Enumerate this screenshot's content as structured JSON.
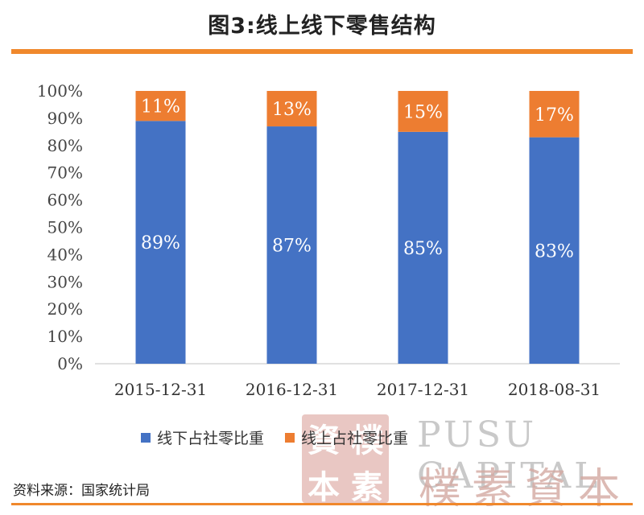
{
  "title": "图3:线上线下零售结构",
  "source": "资料来源：国家统计局",
  "colors": {
    "offline": "#4472C4",
    "online": "#ED7D31",
    "accent_rule": "#F0882C"
  },
  "watermark": {
    "seal_chars": [
      "資",
      "樸",
      "本",
      "素"
    ],
    "text_en": "PUSU CAPITAL",
    "text_cn": "樸素資本"
  },
  "chart_data": {
    "type": "bar",
    "stacked": true,
    "categories": [
      "2015-12-31",
      "2016-12-31",
      "2017-12-31",
      "2018-08-31"
    ],
    "series": [
      {
        "name": "线下占社零比重",
        "values": [
          89,
          87,
          85,
          83
        ],
        "labels": [
          "89%",
          "87%",
          "85%",
          "83%"
        ]
      },
      {
        "name": "线上占社零比重",
        "values": [
          11,
          13,
          15,
          17
        ],
        "labels": [
          "11%",
          "13%",
          "15%",
          "17%"
        ]
      }
    ],
    "y_ticks": [
      "0%",
      "10%",
      "20%",
      "30%",
      "40%",
      "50%",
      "60%",
      "70%",
      "80%",
      "90%",
      "100%"
    ],
    "ylim": [
      0,
      100
    ],
    "grid": false,
    "legend_position": "bottom"
  }
}
